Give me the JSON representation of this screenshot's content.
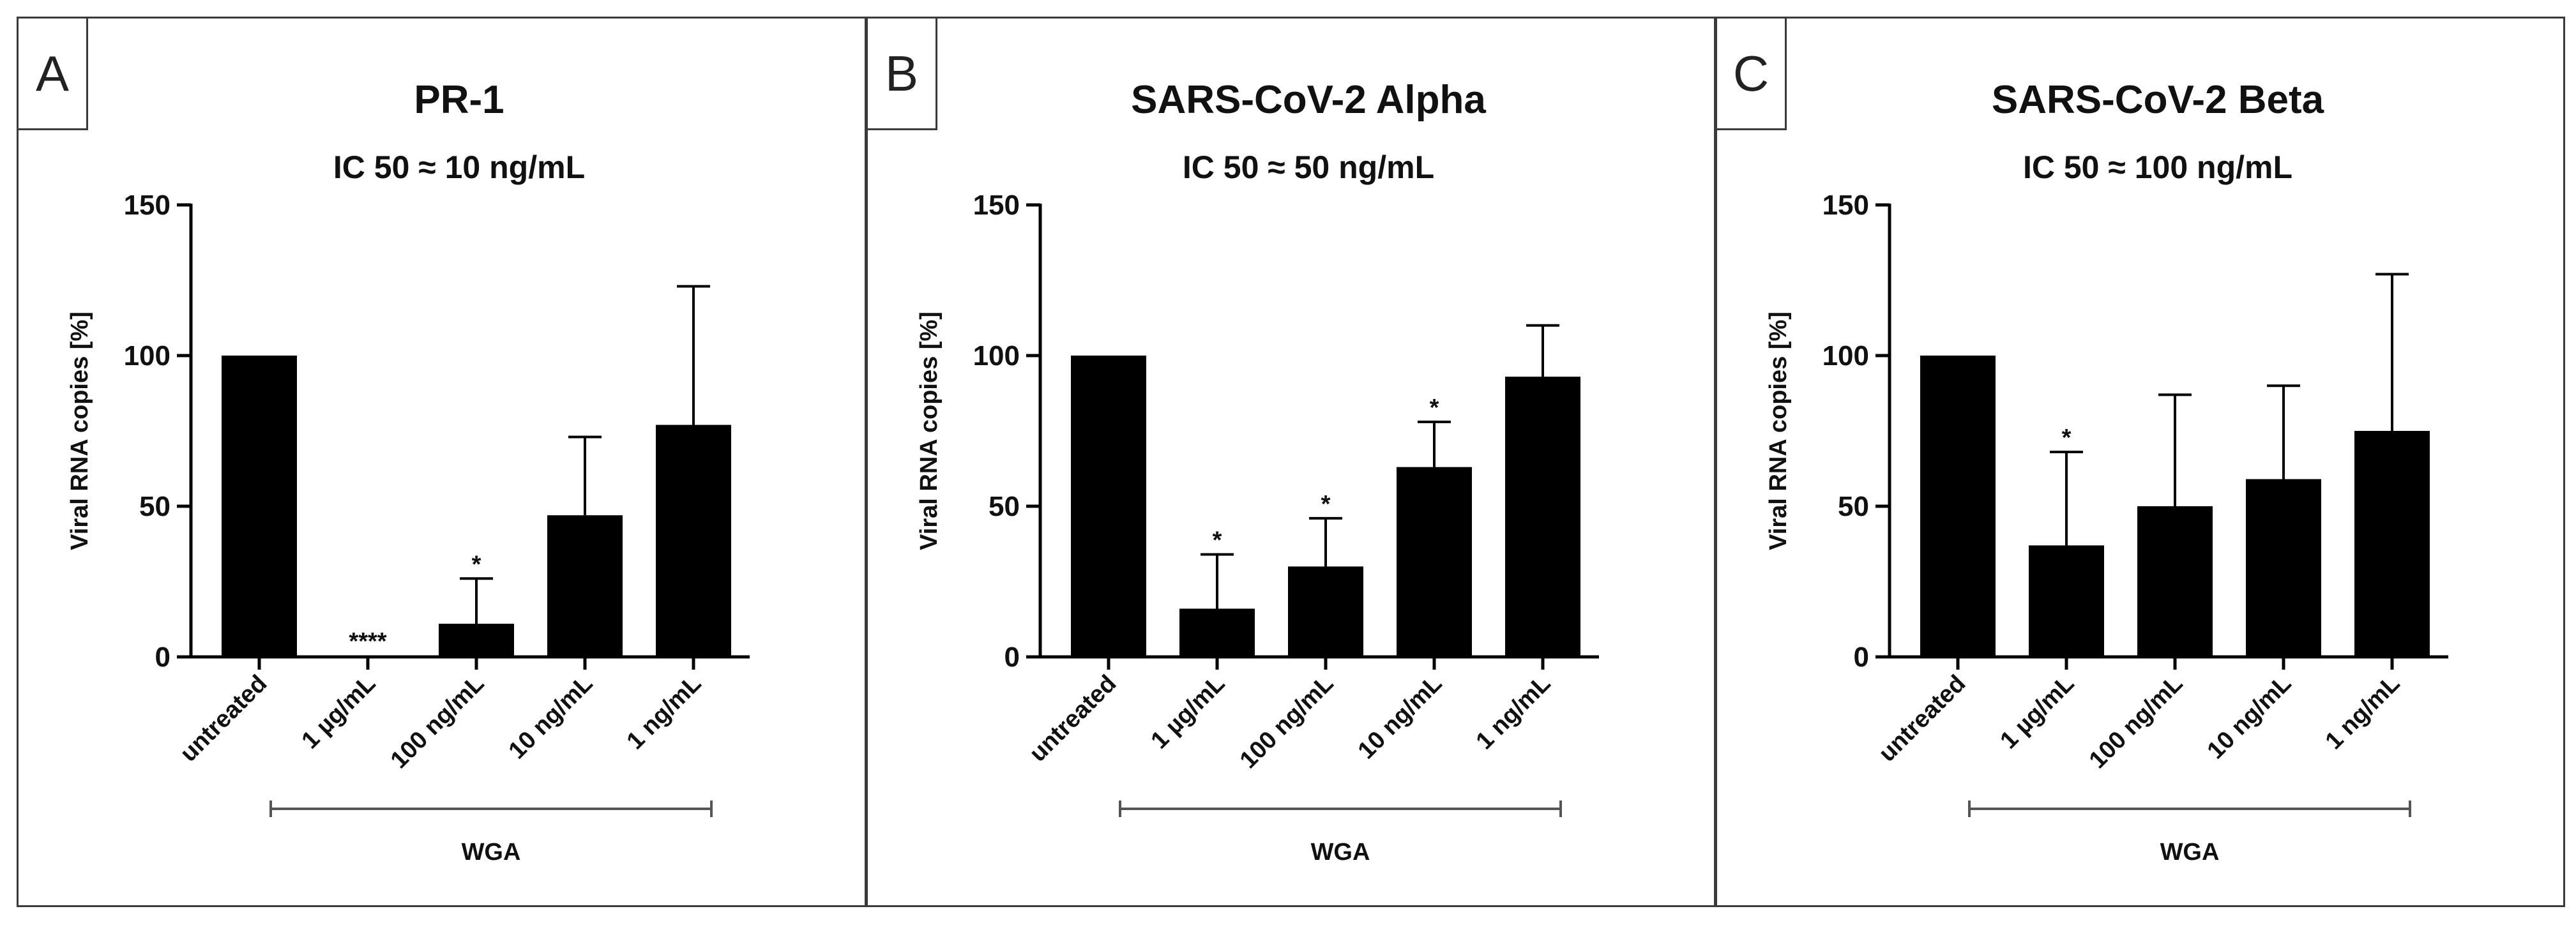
{
  "chart_data": [
    {
      "panel": "A",
      "type": "bar",
      "title": "PR-1",
      "subtitle": "IC 50 ≈ 10 ng/mL",
      "ylabel": "Viral RNA copies [%]",
      "ylim": [
        0,
        150
      ],
      "yticks": [
        "0",
        "50",
        "100",
        "150"
      ],
      "categories": [
        "untreated",
        "1 µg/mL",
        "100 ng/mL",
        "10 ng/mL",
        "1 ng/mL"
      ],
      "values": [
        100,
        0.5,
        11,
        47,
        77
      ],
      "error_upper": [
        null,
        null,
        26,
        73,
        123
      ],
      "annotations": [
        "",
        "****",
        "*",
        "",
        ""
      ],
      "group_label": "WGA",
      "color": "#000000"
    },
    {
      "panel": "B",
      "type": "bar",
      "title": "SARS-CoV-2 Alpha",
      "subtitle": "IC 50 ≈ 50 ng/mL",
      "ylabel": "Viral RNA copies [%]",
      "ylim": [
        0,
        150
      ],
      "yticks": [
        "0",
        "50",
        "100",
        "150"
      ],
      "categories": [
        "untreated",
        "1 µg/mL",
        "100 ng/mL",
        "10 ng/mL",
        "1 ng/mL"
      ],
      "values": [
        100,
        16,
        30,
        63,
        93
      ],
      "error_upper": [
        null,
        34,
        46,
        78,
        110
      ],
      "annotations": [
        "",
        "*",
        "*",
        "*",
        ""
      ],
      "group_label": "WGA",
      "color": "#000000"
    },
    {
      "panel": "C",
      "type": "bar",
      "title": "SARS-CoV-2 Beta",
      "subtitle": "IC 50 ≈ 100 ng/mL",
      "ylabel": "Viral RNA copies [%]",
      "ylim": [
        0,
        150
      ],
      "yticks": [
        "0",
        "50",
        "100",
        "150"
      ],
      "categories": [
        "untreated",
        "1 µg/mL",
        "100 ng/mL",
        "10 ng/mL",
        "1 ng/mL"
      ],
      "values": [
        100,
        37,
        50,
        59,
        75
      ],
      "error_upper": [
        null,
        68,
        87,
        90,
        127
      ],
      "annotations": [
        "",
        "*",
        "",
        "",
        ""
      ],
      "group_label": "WGA",
      "color": "#000000"
    }
  ]
}
